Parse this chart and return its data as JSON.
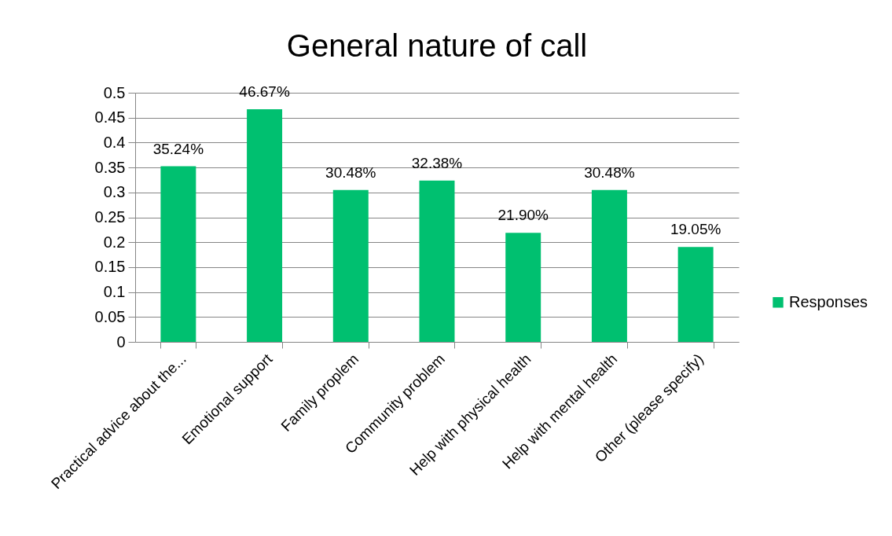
{
  "chart_data": {
    "type": "bar",
    "title": "General nature of call",
    "categories": [
      "Practical advice about the...",
      "Emotional support",
      "Family proplem",
      "Community problem",
      "Help with physical health",
      "Help with mental health",
      "Other (please specify)"
    ],
    "series": [
      {
        "name": "Responses",
        "color": "#00c070",
        "values": [
          0.3524,
          0.4667,
          0.3048,
          0.3238,
          0.219,
          0.3048,
          0.1905
        ],
        "value_labels": [
          "35.24%",
          "46.67%",
          "30.48%",
          "32.38%",
          "21.90%",
          "30.48%",
          "19.05%"
        ]
      }
    ],
    "ylim": [
      0,
      0.5
    ],
    "yticks": [
      0,
      0.05,
      0.1,
      0.15,
      0.2,
      0.25,
      0.3,
      0.35,
      0.4,
      0.45,
      0.5
    ],
    "grid": "y",
    "legend": "right"
  }
}
